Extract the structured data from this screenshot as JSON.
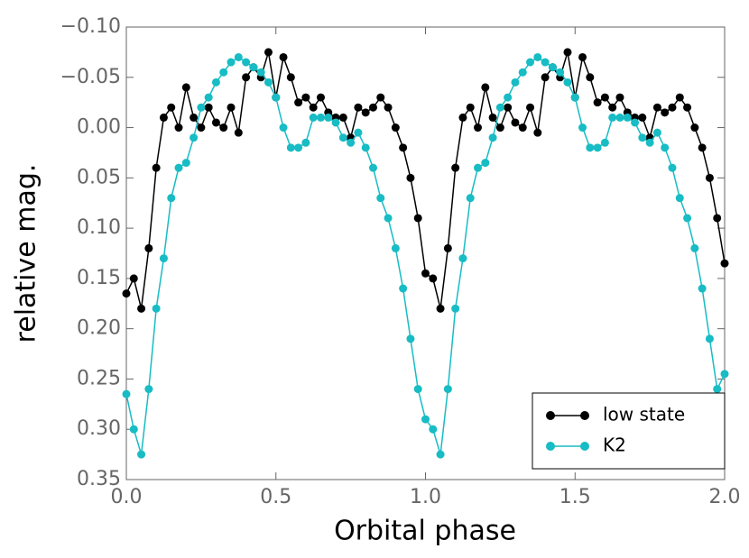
{
  "chart_data": {
    "type": "line",
    "x_label": "Orbital phase",
    "y_label": "relative mag.",
    "x": [
      0,
      0.025,
      0.05,
      0.075,
      0.1,
      0.125,
      0.15,
      0.175,
      0.2,
      0.225,
      0.25,
      0.275,
      0.3,
      0.325,
      0.35,
      0.375,
      0.4,
      0.425,
      0.45,
      0.475,
      0.5,
      0.525,
      0.55,
      0.575,
      0.6,
      0.625,
      0.65,
      0.675,
      0.7,
      0.725,
      0.75,
      0.775,
      0.8,
      0.825,
      0.85,
      0.875,
      0.9,
      0.925,
      0.95,
      0.975,
      1.0,
      1.025,
      1.05,
      1.075,
      1.1,
      1.125,
      1.15,
      1.175,
      1.2,
      1.225,
      1.25,
      1.275,
      1.3,
      1.325,
      1.35,
      1.375,
      1.4,
      1.425,
      1.45,
      1.475,
      1.5,
      1.525,
      1.55,
      1.575,
      1.6,
      1.625,
      1.65,
      1.675,
      1.7,
      1.725,
      1.75,
      1.775,
      1.8,
      1.825,
      1.85,
      1.875,
      1.9,
      1.925,
      1.95,
      1.975,
      2.0
    ],
    "series": [
      {
        "name": "low state",
        "color": "#000000",
        "values": [
          0.165,
          0.15,
          0.18,
          0.12,
          0.04,
          -0.01,
          -0.02,
          0.0,
          -0.04,
          -0.01,
          0.0,
          -0.02,
          -0.005,
          0.0,
          -0.02,
          0.005,
          -0.05,
          -0.06,
          -0.05,
          -0.075,
          -0.03,
          -0.07,
          -0.05,
          -0.025,
          -0.03,
          -0.02,
          -0.03,
          -0.015,
          -0.01,
          -0.01,
          0.01,
          -0.02,
          -0.015,
          -0.02,
          -0.03,
          -0.02,
          0.0,
          0.02,
          0.05,
          0.09,
          0.145,
          0.15,
          0.18,
          0.12,
          0.04,
          -0.01,
          -0.02,
          0.0,
          -0.04,
          -0.01,
          0.0,
          -0.02,
          -0.005,
          0.0,
          -0.02,
          0.005,
          -0.05,
          -0.06,
          -0.05,
          -0.075,
          -0.03,
          -0.07,
          -0.05,
          -0.025,
          -0.03,
          -0.02,
          -0.03,
          -0.015,
          -0.01,
          -0.01,
          0.01,
          -0.02,
          -0.015,
          -0.02,
          -0.03,
          -0.02,
          0.0,
          0.02,
          0.05,
          0.09,
          0.135
        ]
      },
      {
        "name": "K2",
        "color": "#17bcc4",
        "values": [
          0.265,
          0.3,
          0.325,
          0.26,
          0.18,
          0.13,
          0.07,
          0.04,
          0.035,
          0.01,
          -0.02,
          -0.03,
          -0.045,
          -0.055,
          -0.065,
          -0.07,
          -0.065,
          -0.06,
          -0.055,
          -0.045,
          -0.03,
          0.0,
          0.02,
          0.02,
          0.015,
          -0.01,
          -0.01,
          -0.01,
          -0.005,
          0.01,
          0.015,
          0.005,
          0.02,
          0.04,
          0.07,
          0.09,
          0.12,
          0.16,
          0.21,
          0.26,
          0.29,
          0.3,
          0.325,
          0.26,
          0.18,
          0.13,
          0.07,
          0.04,
          0.035,
          0.01,
          -0.02,
          -0.03,
          -0.045,
          -0.055,
          -0.065,
          -0.07,
          -0.065,
          -0.06,
          -0.055,
          -0.045,
          -0.03,
          0.0,
          0.02,
          0.02,
          0.015,
          -0.01,
          -0.01,
          -0.01,
          -0.005,
          0.01,
          0.015,
          0.005,
          0.02,
          0.04,
          0.07,
          0.09,
          0.12,
          0.16,
          0.21,
          0.26,
          0.245
        ]
      }
    ],
    "xlim": [
      0,
      2
    ],
    "xticks": [
      {
        "value": 0,
        "label": "0.0"
      },
      {
        "value": 0.5,
        "label": "0.5"
      },
      {
        "value": 1,
        "label": "1.0"
      },
      {
        "value": 1.5,
        "label": "1.5"
      },
      {
        "value": 2,
        "label": "2.0"
      }
    ],
    "ylim": [
      -0.1,
      0.35
    ],
    "y_inverted": true,
    "yticks": [
      {
        "value": -0.1,
        "label": "−0.10"
      },
      {
        "value": -0.05,
        "label": "−0.05"
      },
      {
        "value": 0,
        "label": "0.00"
      },
      {
        "value": 0.05,
        "label": "0.05"
      },
      {
        "value": 0.1,
        "label": "0.10"
      },
      {
        "value": 0.15,
        "label": "0.15"
      },
      {
        "value": 0.2,
        "label": "0.20"
      },
      {
        "value": 0.25,
        "label": "0.25"
      },
      {
        "value": 0.3,
        "label": "0.30"
      },
      {
        "value": 0.35,
        "label": "0.35"
      }
    ],
    "legend": "lower right",
    "grid": false
  }
}
